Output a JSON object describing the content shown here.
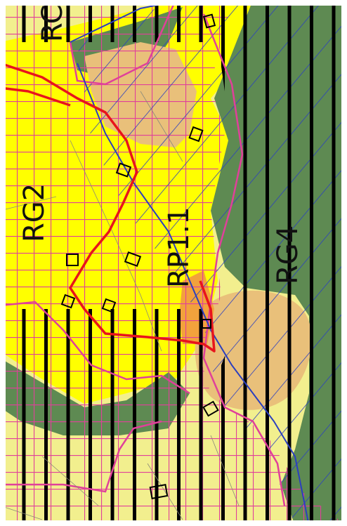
{
  "map": {
    "labels": {
      "rg2": "RG2",
      "rp11": "RP1.1",
      "rg4": "RG4",
      "rc_partial": "RC"
    },
    "colors": {
      "yellow_zone": "#ffff00",
      "pale_yellow": "#f2ef8e",
      "tan_zone": "#e9c07a",
      "orange_zone": "#f2a23c",
      "dark_green": "#5e8a52",
      "magenta_grid": "#e0409a",
      "black_stripes": "#000000",
      "blue_hatch": "#2b3fbf",
      "red_boundary": "#e8141c",
      "building_outline": "#000000"
    }
  }
}
